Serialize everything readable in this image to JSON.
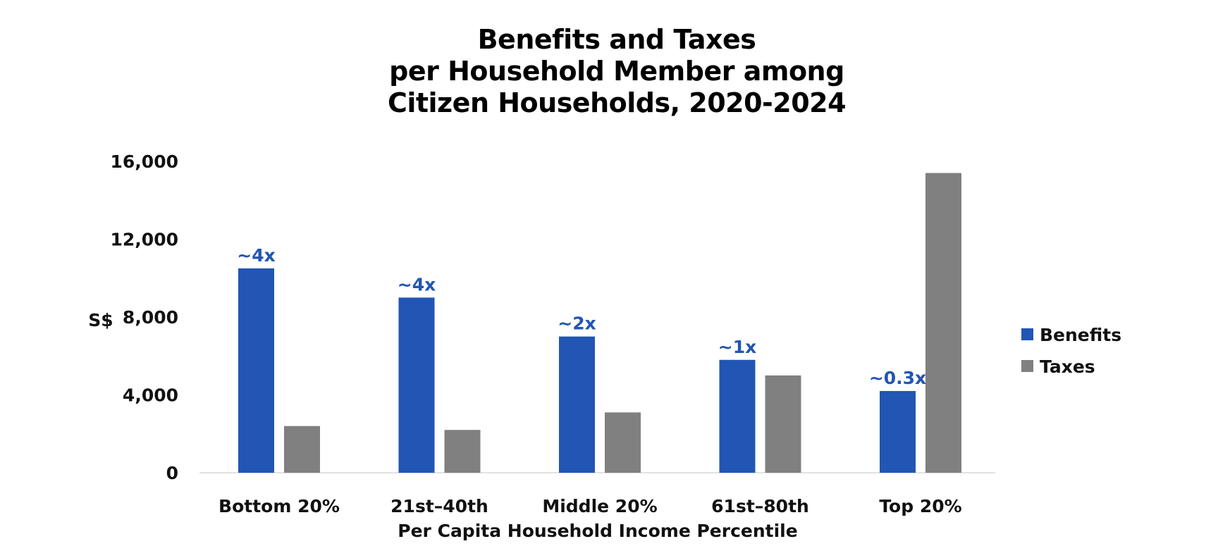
{
  "chart_data": {
    "type": "bar",
    "title": [
      "Benefits and Taxes",
      "per Household Member among",
      "Citizen Households, 2020-2024"
    ],
    "xlabel": "Per Capita Household Income Percentile",
    "ylabel": "S$",
    "categories": [
      "Bottom 20%",
      "21st–40th",
      "Middle 20%",
      "61st–80th",
      "Top 20%"
    ],
    "series": [
      {
        "name": "Benefits",
        "color": "#2255b4",
        "values": [
          10500,
          9000,
          7000,
          5800,
          4200
        ]
      },
      {
        "name": "Taxes",
        "color": "#808080",
        "values": [
          2400,
          2200,
          3100,
          5000,
          15400
        ]
      }
    ],
    "annotations": [
      "~4x",
      "~4x",
      "~2x",
      "~1x",
      "~0.3x"
    ],
    "annotation_color": "#2255b4",
    "yticks": [
      "0",
      "4,000",
      "8,000",
      "12,000",
      "16,000"
    ],
    "ytick_values": [
      0,
      4000,
      8000,
      12000,
      16000
    ],
    "ylim": [
      0,
      16000
    ],
    "grid": false,
    "legend_position": "right"
  }
}
